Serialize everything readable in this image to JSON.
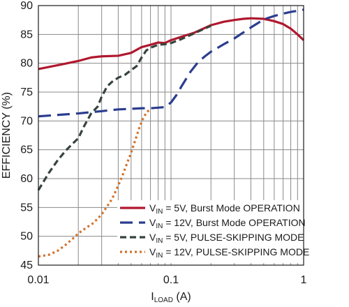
{
  "chart_data": {
    "type": "line",
    "xscale": "log",
    "xlim": [
      0.01,
      1
    ],
    "ylim": [
      45,
      90
    ],
    "grid": true,
    "xlabel": {
      "main": "I",
      "sub": "LOAD",
      "rest": " (A)"
    },
    "ylabel": "EFFICIENCY (%)",
    "x_ticks": [
      {
        "value": 0.01,
        "label": "0.01"
      },
      {
        "value": 0.1,
        "label": "0.1"
      },
      {
        "value": 1,
        "label": "1"
      }
    ],
    "y_ticks": [
      {
        "value": 45,
        "label": "45"
      },
      {
        "value": 50,
        "label": "50"
      },
      {
        "value": 55,
        "label": "55"
      },
      {
        "value": 60,
        "label": "60"
      },
      {
        "value": 65,
        "label": "65"
      },
      {
        "value": 70,
        "label": "70"
      },
      {
        "value": 75,
        "label": "75"
      },
      {
        "value": 80,
        "label": "80"
      },
      {
        "value": 85,
        "label": "85"
      },
      {
        "value": 90,
        "label": "90"
      }
    ],
    "legend_position": "bottom-right",
    "series": [
      {
        "name": {
          "pre": "V",
          "sub": "IN",
          "post": " = 5V, Burst Mode OPERATION"
        },
        "color": "#b0182e",
        "style": "solid",
        "x": [
          0.01,
          0.015,
          0.02,
          0.025,
          0.03,
          0.04,
          0.05,
          0.06,
          0.07,
          0.08,
          0.09,
          0.1,
          0.12,
          0.15,
          0.2,
          0.25,
          0.3,
          0.35,
          0.4,
          0.5,
          0.6,
          0.7,
          0.8,
          0.9,
          1.0
        ],
        "y": [
          79.0,
          79.8,
          80.4,
          81.0,
          81.2,
          81.3,
          81.8,
          82.8,
          83.2,
          83.6,
          83.5,
          84.0,
          84.6,
          85.3,
          86.6,
          87.2,
          87.5,
          87.7,
          87.8,
          87.7,
          87.3,
          86.8,
          86.0,
          85.0,
          84.0
        ]
      },
      {
        "name": {
          "pre": "V",
          "sub": "IN",
          "post": " = 12V, Burst Mode OPERATION"
        },
        "color": "#2a3d8f",
        "style": "long-dash",
        "x": [
          0.01,
          0.02,
          0.03,
          0.04,
          0.05,
          0.06,
          0.07,
          0.08,
          0.09,
          0.1,
          0.11,
          0.12,
          0.14,
          0.16,
          0.18,
          0.2,
          0.25,
          0.3,
          0.4,
          0.5,
          0.6,
          0.7,
          0.8,
          0.9,
          1.0
        ],
        "y": [
          70.8,
          71.3,
          71.7,
          72.0,
          72.1,
          72.2,
          72.2,
          72.3,
          72.4,
          73.2,
          74.5,
          76.0,
          78.5,
          80.2,
          81.2,
          82.0,
          83.3,
          84.3,
          86.2,
          87.6,
          88.2,
          88.6,
          88.9,
          89.1,
          89.3
        ]
      },
      {
        "name": {
          "pre": "V",
          "sub": "IN",
          "post": " = 5V, PULSE-SKIPPING MODE"
        },
        "color": "#35443c",
        "style": "dash",
        "x": [
          0.01,
          0.012,
          0.014,
          0.016,
          0.018,
          0.02,
          0.022,
          0.025,
          0.028,
          0.03,
          0.033,
          0.036,
          0.04,
          0.045,
          0.05,
          0.055,
          0.06,
          0.065,
          0.07,
          0.08,
          0.09,
          0.1,
          0.12,
          0.15,
          0.2
        ],
        "y": [
          58.0,
          61.0,
          63.2,
          64.8,
          66.0,
          67.0,
          69.0,
          71.3,
          72.5,
          74.2,
          76.0,
          76.8,
          77.5,
          78.0,
          78.8,
          79.5,
          81.0,
          82.2,
          82.7,
          83.2,
          83.3,
          83.5,
          84.2,
          85.2,
          86.5
        ]
      },
      {
        "name": {
          "pre": "V",
          "sub": "IN",
          "post": " = 12V, PULSE-SKIPPING MODE"
        },
        "color": "#d2712b",
        "style": "dot",
        "x": [
          0.01,
          0.012,
          0.014,
          0.016,
          0.018,
          0.02,
          0.023,
          0.026,
          0.03,
          0.033,
          0.036,
          0.04,
          0.043,
          0.046,
          0.05,
          0.054,
          0.058,
          0.062,
          0.066,
          0.07
        ],
        "y": [
          46.5,
          46.8,
          47.5,
          48.5,
          49.5,
          50.5,
          51.5,
          52.3,
          53.8,
          55.2,
          56.5,
          58.8,
          60.5,
          62.3,
          64.5,
          66.8,
          69.0,
          70.6,
          71.6,
          72.0
        ]
      }
    ]
  }
}
